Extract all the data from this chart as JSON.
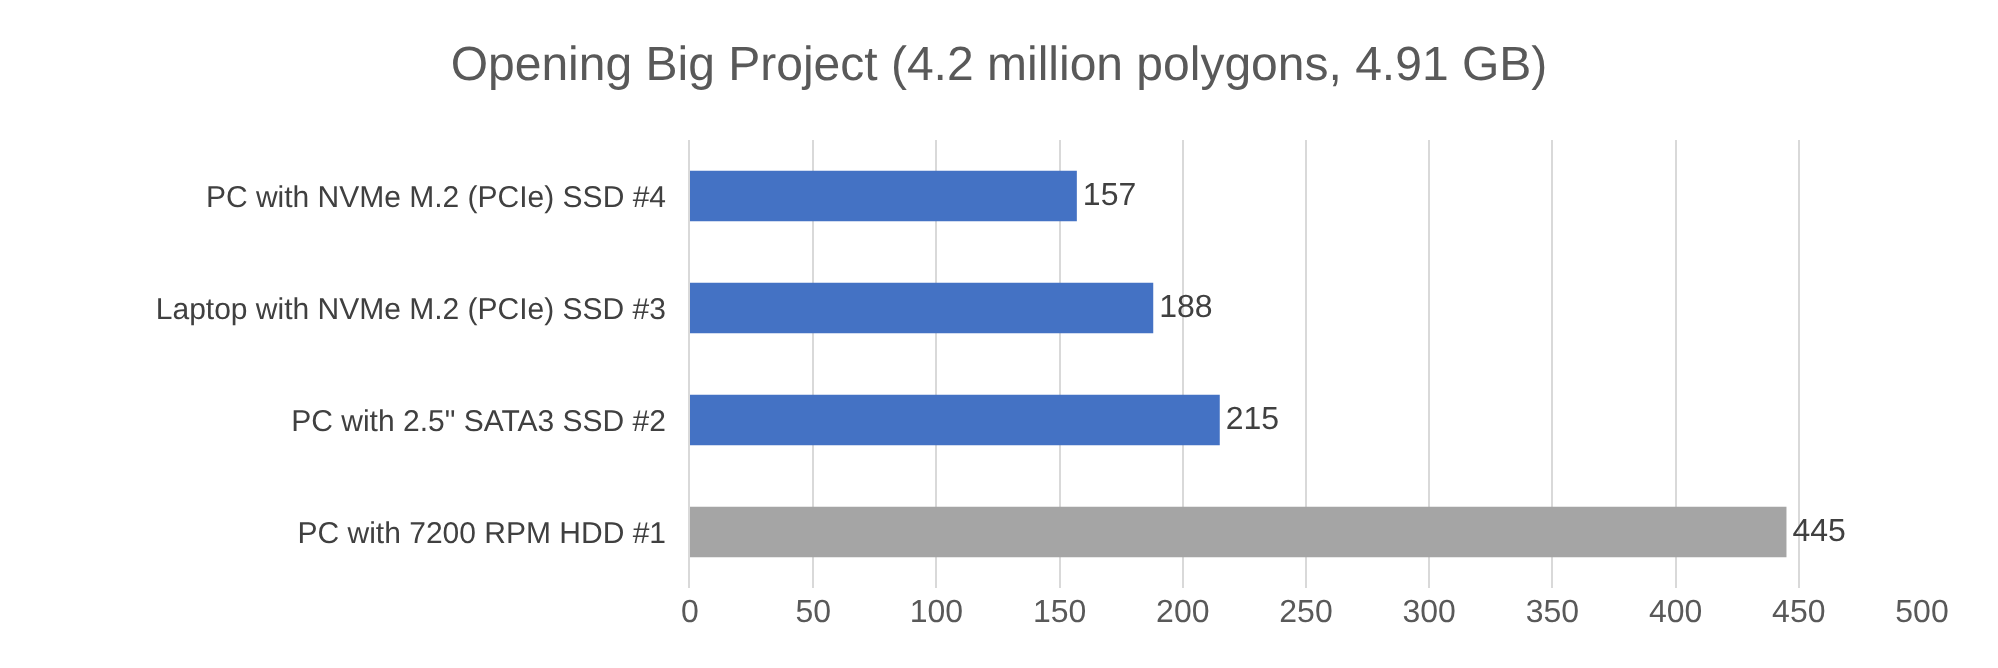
{
  "chart_data": {
    "type": "bar",
    "orientation": "horizontal",
    "title": "Opening Big Project (4.2 million polygons, 4.91 GB)",
    "categories": [
      "PC with NVMe M.2 (PCIe) SSD #4",
      "Laptop with NVMe M.2 (PCIe) SSD #3",
      "PC with 2.5\" SATA3 SSD #2",
      "PC with 7200 RPM HDD #1"
    ],
    "values": [
      157,
      188,
      215,
      445
    ],
    "colors": [
      "#4472c4",
      "#4472c4",
      "#4472c4",
      "#a5a5a5"
    ],
    "xlim": [
      0,
      500
    ],
    "xticks": [
      0,
      50,
      100,
      150,
      200,
      250,
      300,
      350,
      400,
      450,
      500
    ],
    "grid": "x",
    "data_labels": true,
    "legend": false
  }
}
